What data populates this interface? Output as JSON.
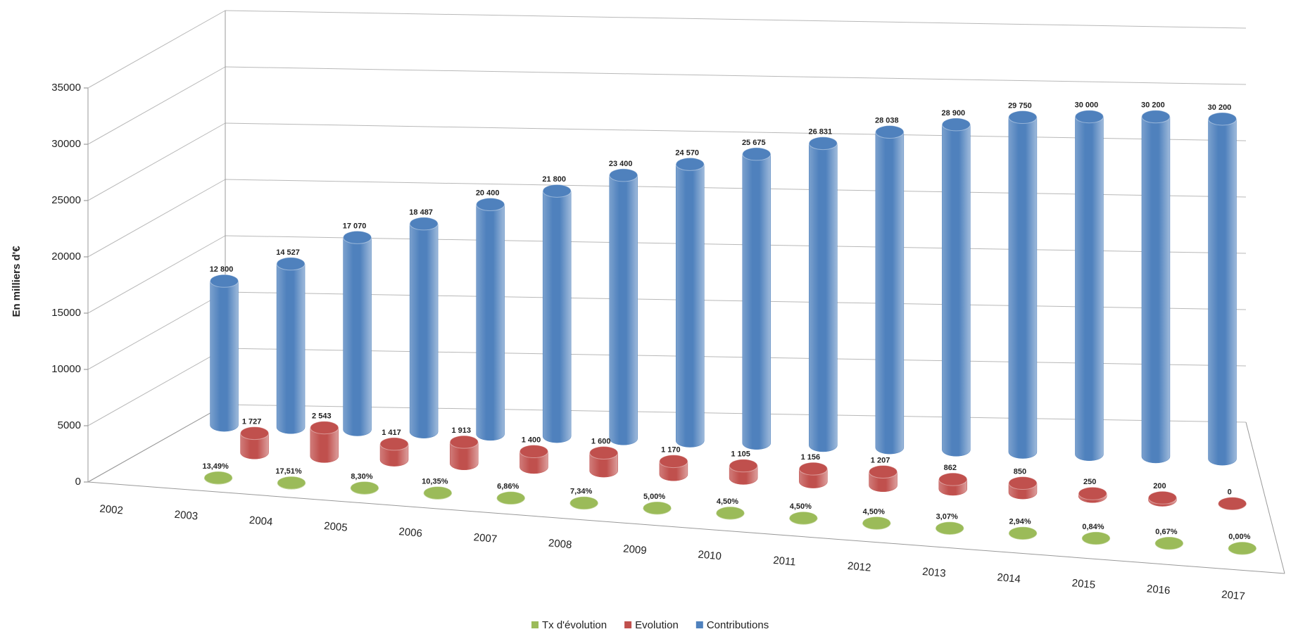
{
  "chart_data": {
    "type": "cylinder3d",
    "y_label": "En milliers d'€",
    "categories": [
      "2002",
      "2003",
      "2004",
      "2005",
      "2006",
      "2007",
      "2008",
      "2009",
      "2010",
      "2011",
      "2012",
      "2013",
      "2014",
      "2015",
      "2016",
      "2017"
    ],
    "series": [
      {
        "name": "Tx d'évolution",
        "color": "#9bbb59",
        "values": [
          null,
          13.49,
          17.51,
          8.3,
          10.35,
          6.86,
          7.34,
          5.0,
          4.5,
          4.5,
          4.5,
          3.07,
          2.94,
          0.84,
          0.67,
          0.0
        ],
        "value_labels": [
          null,
          "13,49%",
          "17,51%",
          "8,30%",
          "10,35%",
          "6,86%",
          "7,34%",
          "5,00%",
          "4,50%",
          "4,50%",
          "4,50%",
          "3,07%",
          "2,94%",
          "0,84%",
          "0,67%",
          "0,00%"
        ]
      },
      {
        "name": "Evolution",
        "color": "#c0504d",
        "values": [
          null,
          1727,
          2543,
          1417,
          1913,
          1400,
          1600,
          1170,
          1105,
          1156,
          1207,
          862,
          850,
          250,
          200,
          0
        ],
        "value_labels": [
          null,
          "1 727",
          "2 543",
          "1 417",
          "1 913",
          "1 400",
          "1 600",
          "1 170",
          "1 105",
          "1 156",
          "1 207",
          "862",
          "850",
          "250",
          "200",
          "0"
        ]
      },
      {
        "name": "Contributions",
        "color": "#4f81bd",
        "values": [
          12800,
          14527,
          17070,
          18487,
          20400,
          21800,
          23400,
          24570,
          25675,
          26831,
          28038,
          28900,
          29750,
          30000,
          30200,
          30200
        ],
        "value_labels": [
          "12 800",
          "14 527",
          "17 070",
          "18 487",
          "20 400",
          "21 800",
          "23 400",
          "24 570",
          "25 675",
          "26 831",
          "28 038",
          "28 900",
          "29 750",
          "30 000",
          "30 200",
          "30 200"
        ]
      }
    ],
    "ylim": [
      0,
      35000
    ],
    "yticks": [
      0,
      5000,
      10000,
      15000,
      20000,
      25000,
      30000,
      35000
    ],
    "grid": true
  }
}
